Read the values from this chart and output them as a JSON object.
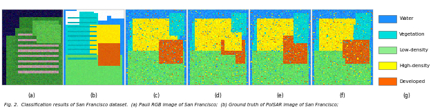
{
  "legend_items": [
    {
      "label": "Water",
      "color": "#1E90FF"
    },
    {
      "label": "Vegetation",
      "color": "#00DDDD"
    },
    {
      "label": "Low-density",
      "color": "#90EE90"
    },
    {
      "label": "High-density",
      "color": "#FFFF00"
    },
    {
      "label": "Developed",
      "color": "#FF6600"
    }
  ],
  "subfig_labels": [
    "(a)",
    "(b)",
    "(c)",
    "(d)",
    "(e)",
    "(f)",
    "(g)"
  ],
  "caption": "Fig. 2.  Classification results of San Francisco dataset.  (a) Pauli RGB image of San Francisco;  (b) Ground truth of PolSAR image of San Francisco;",
  "n_subfigs": 7,
  "fig_width": 6.4,
  "fig_height": 1.59,
  "dpi": 100,
  "label_fontsize": 5.5,
  "caption_fontsize": 4.8,
  "legend_fontsize": 5.0
}
